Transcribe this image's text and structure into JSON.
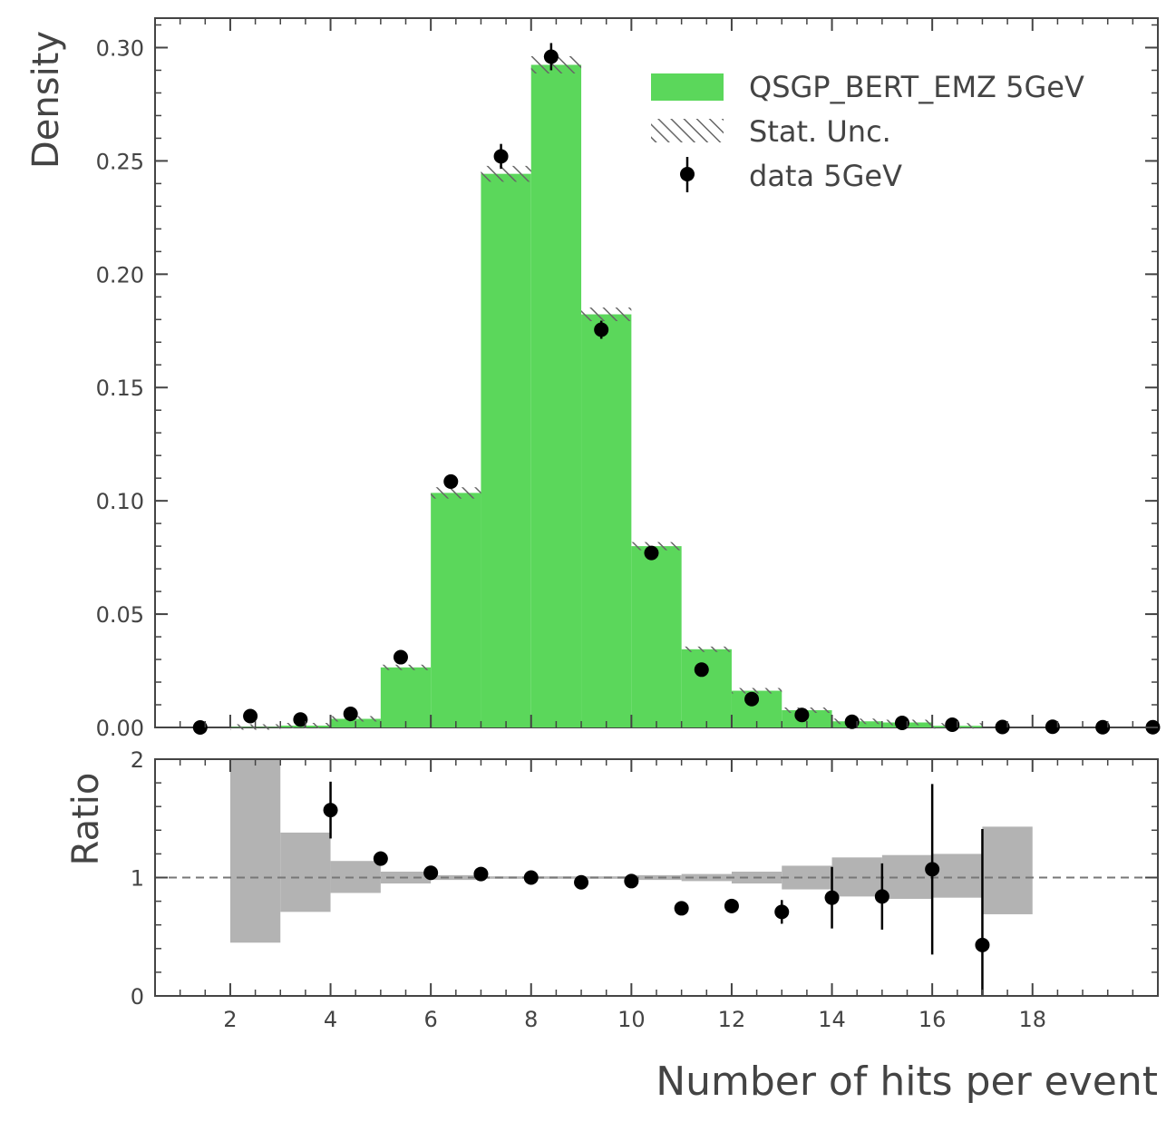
{
  "chart_data": [
    {
      "type": "bar",
      "panel": "main",
      "ylabel": "Density",
      "xlim": [
        0.5,
        20.5
      ],
      "ylim": [
        0,
        0.313
      ],
      "yticks": [
        0.0,
        0.05,
        0.1,
        0.15,
        0.2,
        0.25,
        0.3
      ],
      "ytick_labels": [
        "0.00",
        "0.05",
        "0.10",
        "0.15",
        "0.20",
        "0.25",
        "0.30"
      ],
      "bin_edges": [
        1,
        2,
        3,
        4,
        5,
        6,
        7,
        8,
        9,
        10,
        11,
        12,
        13,
        14,
        15,
        16,
        17,
        18,
        19,
        20
      ],
      "series": [
        {
          "name": "QSGP_BERT_EMZ 5GeV",
          "kind": "histogram",
          "color": "#5bd75b",
          "values": [
            0.0,
            0.0002,
            0.0008,
            0.0038,
            0.0265,
            0.1035,
            0.2443,
            0.2924,
            0.1823,
            0.08,
            0.0345,
            0.0162,
            0.0076,
            0.0027,
            0.0022,
            0.0007,
            0.0,
            0.0,
            0.0
          ],
          "errors": [
            0.0,
            0.0001,
            0.0003,
            0.0008,
            0.0012,
            0.0025,
            0.0035,
            0.0038,
            0.003,
            0.0018,
            0.0012,
            0.0008,
            0.0006,
            0.0004,
            0.0003,
            0.0002,
            0.0,
            0.0,
            0.0
          ]
        },
        {
          "name": "Stat. Unc.",
          "kind": "hatch",
          "color": "#777777"
        },
        {
          "name": "data 5GeV",
          "kind": "errorbar",
          "color": "#000000",
          "x": [
            1.5,
            2.5,
            3.5,
            4.5,
            5.5,
            6.5,
            7.5,
            8.5,
            9.5,
            10.5,
            11.5,
            12.5,
            13.5,
            14.5,
            15.5,
            16.5,
            17.5,
            18.5,
            19.5,
            20.5
          ],
          "values": [
            0.0,
            0.005,
            0.0035,
            0.006,
            0.031,
            0.1085,
            0.252,
            0.296,
            0.1755,
            0.077,
            0.0255,
            0.0125,
            0.0055,
            0.0025,
            0.002,
            0.0012,
            0.0002,
            0.0003,
            0.0001,
            0.0001
          ],
          "errors": [
            0.0,
            0.0005,
            0.0004,
            0.0007,
            0.0015,
            0.0025,
            0.0055,
            0.006,
            0.004,
            0.0025,
            0.0012,
            0.0008,
            0.0006,
            0.0004,
            0.0003,
            0.0003,
            0.0001,
            0.0001,
            0.0,
            0.0
          ]
        }
      ],
      "legend_position": "top-right"
    },
    {
      "type": "bar",
      "panel": "ratio",
      "xlabel": "Number of hits per event",
      "ylabel": "Ratio",
      "xlim": [
        0.5,
        20.5
      ],
      "ylim": [
        0,
        2
      ],
      "yticks": [
        0,
        1,
        2
      ],
      "ytick_labels": [
        "0",
        "1",
        "2"
      ],
      "xticks": [
        2,
        4,
        6,
        8,
        10,
        12,
        14,
        16,
        18
      ],
      "xtick_labels": [
        "2",
        "4",
        "6",
        "8",
        "10",
        "12",
        "14",
        "16",
        "18"
      ],
      "reference_line": 1,
      "band": {
        "color": "#b3b3b3",
        "bin_edges": [
          1,
          2,
          3,
          4,
          5,
          6,
          7,
          8,
          9,
          10,
          11,
          12,
          13,
          14,
          15,
          16,
          17
        ],
        "lower": [
          1.0,
          0.45,
          0.71,
          0.87,
          0.95,
          0.98,
          0.99,
          0.99,
          0.99,
          0.98,
          0.97,
          0.95,
          0.9,
          0.84,
          0.82,
          0.83,
          0.69
        ],
        "upper": [
          1.0,
          2.0,
          1.38,
          1.14,
          1.05,
          1.02,
          1.01,
          1.01,
          1.01,
          1.02,
          1.03,
          1.05,
          1.1,
          1.17,
          1.19,
          1.2,
          1.43
        ],
        "note": "band drawn per bin between edges; first entry unused"
      },
      "points": {
        "color": "#000000",
        "x": [
          4,
          5,
          6,
          7,
          8,
          9,
          10,
          11,
          12,
          13,
          14,
          15,
          16,
          17
        ],
        "values": [
          1.57,
          1.16,
          1.04,
          1.03,
          1.0,
          0.96,
          0.97,
          0.74,
          0.76,
          0.71,
          0.83,
          0.84,
          1.07,
          0.43
        ],
        "errors": [
          0.24,
          0.06,
          0.02,
          0.02,
          0.015,
          0.02,
          0.02,
          0.03,
          0.06,
          0.1,
          0.26,
          0.28,
          0.72,
          0.98
        ]
      }
    }
  ]
}
